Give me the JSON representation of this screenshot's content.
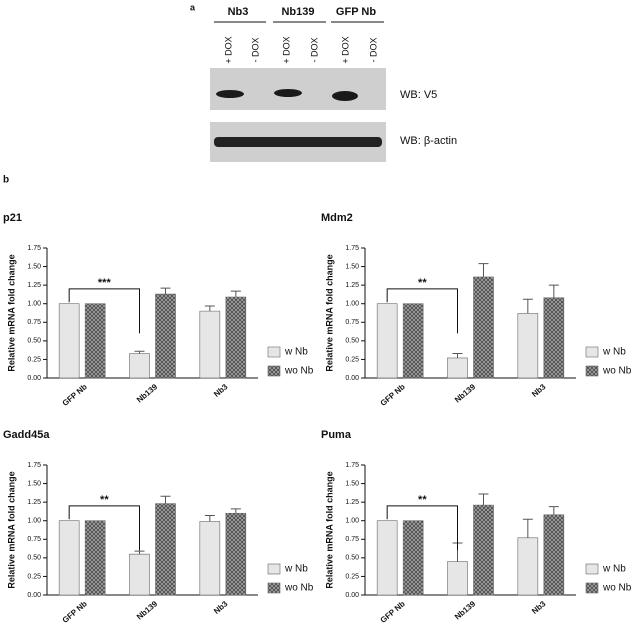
{
  "panel_a": {
    "label": "a",
    "groups": [
      "Nb3",
      "Nb139",
      "GFP Nb"
    ],
    "lanes": [
      "+ DOX",
      "- DOX",
      "+ DOX",
      "- DOX",
      "+ DOX",
      "- DOX"
    ],
    "blots": [
      "WB: V5",
      "WB: β-actin"
    ]
  },
  "panel_b": {
    "label": "b"
  },
  "chart_data": [
    {
      "type": "bar",
      "title": "p21",
      "y_label": "Relative mRNA fold change",
      "categories": [
        "GFP Nb",
        "Nb139",
        "Nb3"
      ],
      "series": [
        {
          "name": "w Nb",
          "color": "#d9d9d9",
          "values": [
            1.0,
            0.33,
            0.9
          ],
          "errors": [
            null,
            0.03,
            0.07
          ]
        },
        {
          "name": "wo Nb",
          "color": "#555555",
          "values": [
            1.0,
            1.13,
            1.09
          ],
          "errors": [
            null,
            0.08,
            0.08
          ]
        }
      ],
      "ylim": [
        0,
        1.75
      ],
      "yticks": [
        {
          "value": 0,
          "label": "0.00"
        },
        {
          "value": 0.25,
          "label": "0.25"
        },
        {
          "value": 0.5,
          "label": "0.50"
        },
        {
          "value": 0.75,
          "label": "0.75"
        },
        {
          "value": 1,
          "label": "1.00"
        },
        {
          "value": 1.25,
          "label": "1.25"
        },
        {
          "value": 1.5,
          "label": "1.50"
        },
        {
          "value": 1.75,
          "label": "1.75"
        }
      ],
      "annotations": [
        {
          "text": "***"
        }
      ]
    },
    {
      "type": "bar",
      "title": "Mdm2",
      "y_label": "Relative mRNA fold change",
      "categories": [
        "GFP Nb",
        "Nb139",
        "Nb3"
      ],
      "series": [
        {
          "name": "w Nb",
          "color": "#d9d9d9",
          "values": [
            1.0,
            0.27,
            0.87
          ],
          "errors": [
            null,
            0.06,
            0.19
          ]
        },
        {
          "name": "wo Nb",
          "color": "#555555",
          "values": [
            1.0,
            1.36,
            1.08
          ],
          "errors": [
            null,
            0.18,
            0.17
          ]
        }
      ],
      "ylim": [
        0,
        1.75
      ],
      "yticks": [
        {
          "value": 0,
          "label": "0.00"
        },
        {
          "value": 0.25,
          "label": "0.25"
        },
        {
          "value": 0.5,
          "label": "0.50"
        },
        {
          "value": 0.75,
          "label": "0.75"
        },
        {
          "value": 1,
          "label": "1.00"
        },
        {
          "value": 1.25,
          "label": "1.25"
        },
        {
          "value": 1.5,
          "label": "1.50"
        },
        {
          "value": 1.75,
          "label": "1.75"
        }
      ],
      "annotations": [
        {
          "text": "**"
        }
      ]
    },
    {
      "type": "bar",
      "title": "Gadd45a",
      "y_label": "Relative mRNA fold change",
      "categories": [
        "GFP Nb",
        "Nb139",
        "Nb3"
      ],
      "series": [
        {
          "name": "w Nb",
          "color": "#d9d9d9",
          "values": [
            1.0,
            0.55,
            0.99
          ],
          "errors": [
            null,
            0.04,
            0.08
          ]
        },
        {
          "name": "wo Nb",
          "color": "#555555",
          "values": [
            1.0,
            1.23,
            1.1
          ],
          "errors": [
            null,
            0.1,
            0.06
          ]
        }
      ],
      "ylim": [
        0,
        1.75
      ],
      "yticks": [
        {
          "value": 0,
          "label": "0.00"
        },
        {
          "value": 0.25,
          "label": "0.25"
        },
        {
          "value": 0.5,
          "label": "0.50"
        },
        {
          "value": 0.75,
          "label": "0.75"
        },
        {
          "value": 1,
          "label": "1.00"
        },
        {
          "value": 1.25,
          "label": "1.25"
        },
        {
          "value": 1.5,
          "label": "1.50"
        },
        {
          "value": 1.75,
          "label": "1.75"
        }
      ],
      "annotations": [
        {
          "text": "**"
        }
      ]
    },
    {
      "type": "bar",
      "title": "Puma",
      "y_label": "Relative mRNA fold change",
      "categories": [
        "GFP Nb",
        "Nb139",
        "Nb3"
      ],
      "series": [
        {
          "name": "w Nb",
          "color": "#d9d9d9",
          "values": [
            1.0,
            0.45,
            0.77
          ],
          "errors": [
            null,
            0.25,
            0.25
          ]
        },
        {
          "name": "wo Nb",
          "color": "#555555",
          "values": [
            1.0,
            1.21,
            1.08
          ],
          "errors": [
            null,
            0.15,
            0.11
          ]
        }
      ],
      "ylim": [
        0,
        1.75
      ],
      "yticks": [
        {
          "value": 0,
          "label": "0.00"
        },
        {
          "value": 0.25,
          "label": "0.25"
        },
        {
          "value": 0.5,
          "label": "0.50"
        },
        {
          "value": 0.75,
          "label": "0.75"
        },
        {
          "value": 1,
          "label": "1.00"
        },
        {
          "value": 1.25,
          "label": "1.25"
        },
        {
          "value": 1.5,
          "label": "1.50"
        },
        {
          "value": 1.75,
          "label": "1.75"
        }
      ],
      "annotations": [
        {
          "text": "**"
        }
      ]
    }
  ]
}
